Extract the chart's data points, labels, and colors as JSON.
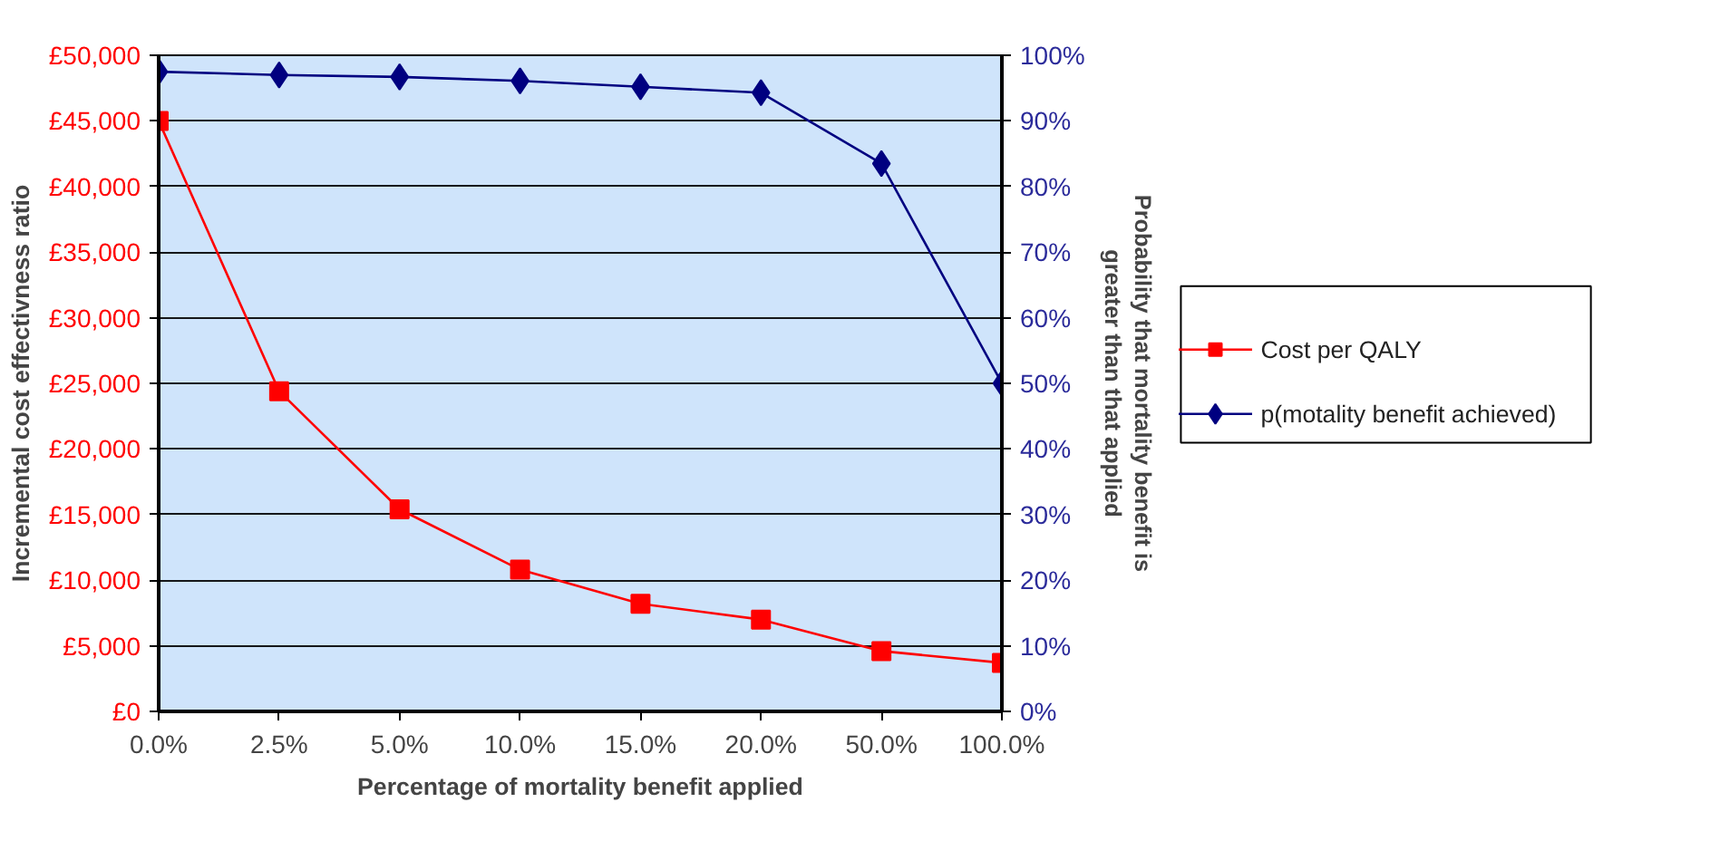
{
  "chart_data": {
    "type": "line",
    "xlabel": "Percentage of mortality benefit applied",
    "ylabel": "Incremental cost effectivness ratio",
    "y2label": "Probability that mortality benefit is greater than that applied",
    "categories": [
      "0.0%",
      "2.5%",
      "5.0%",
      "10.0%",
      "15.0%",
      "20.0%",
      "50.0%",
      "100.0%"
    ],
    "series": [
      {
        "name": "Cost per QALY",
        "color": "#ff0000",
        "marker": "square",
        "values": [
          45000,
          24400,
          15400,
          10800,
          8200,
          7000,
          4600,
          3700
        ]
      },
      {
        "name": "p(motality benefit achieved)",
        "color": "#000080",
        "marker": "diamond",
        "axis": "y2",
        "values": [
          97.5,
          97,
          96.7,
          96.1,
          95.2,
          94.3,
          83.5,
          50
        ]
      }
    ],
    "ylim": [
      0,
      50000
    ],
    "yticks": [
      {
        "value": 0,
        "label": "£0"
      },
      {
        "value": 5000,
        "label": "£5,000"
      },
      {
        "value": 10000,
        "label": "£10,000"
      },
      {
        "value": 15000,
        "label": "£15,000"
      },
      {
        "value": 20000,
        "label": "£20,000"
      },
      {
        "value": 25000,
        "label": "£25,000"
      },
      {
        "value": 30000,
        "label": "£30,000"
      },
      {
        "value": 35000,
        "label": "£35,000"
      },
      {
        "value": 40000,
        "label": "£40,000"
      },
      {
        "value": 45000,
        "label": "£45,000"
      },
      {
        "value": 50000,
        "label": "£50,000"
      }
    ],
    "y2lim": [
      0,
      100
    ],
    "y2ticks": [
      {
        "value": 0,
        "label": "0%"
      },
      {
        "value": 10,
        "label": "10%"
      },
      {
        "value": 20,
        "label": "20%"
      },
      {
        "value": 30,
        "label": "30%"
      },
      {
        "value": 40,
        "label": "40%"
      },
      {
        "value": 50,
        "label": "50%"
      },
      {
        "value": 60,
        "label": "60%"
      },
      {
        "value": 70,
        "label": "70%"
      },
      {
        "value": 80,
        "label": "80%"
      },
      {
        "value": 90,
        "label": "90%"
      },
      {
        "value": 100,
        "label": "100%"
      }
    ],
    "grid": "y",
    "legend": "right",
    "line_style": "solid"
  }
}
